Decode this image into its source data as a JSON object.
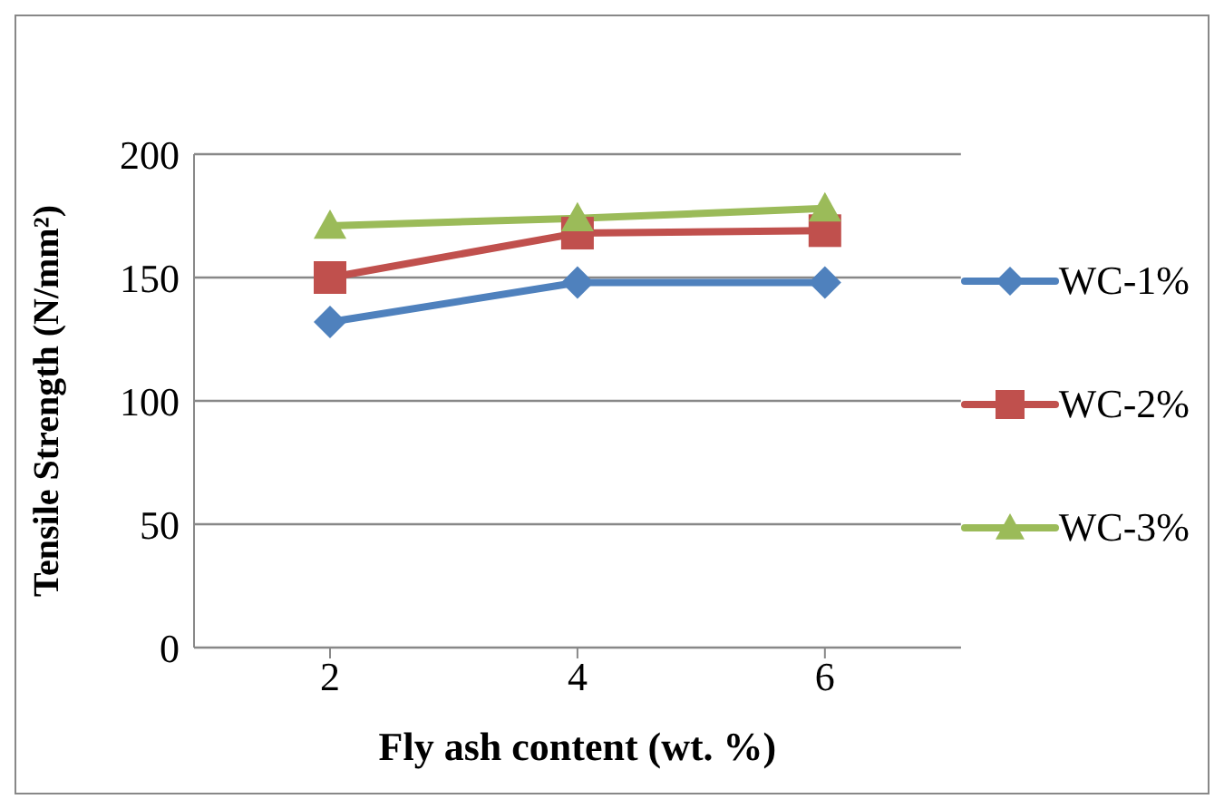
{
  "chart_data": {
    "type": "line",
    "xlabel": "Fly ash content (wt. %)",
    "ylabel": "Tensile Strength (N/mm²)",
    "categories": [
      "2",
      "4",
      "6"
    ],
    "series": [
      {
        "name": "WC-1%",
        "color": "#4f81bd",
        "marker": "diamond",
        "values": [
          132,
          148,
          148
        ]
      },
      {
        "name": "WC-2%",
        "color": "#c0504d",
        "marker": "square",
        "values": [
          150,
          168,
          169
        ]
      },
      {
        "name": "WC-3%",
        "color": "#9bbb59",
        "marker": "triangle",
        "values": [
          171,
          174,
          178
        ]
      }
    ],
    "ylim": [
      0,
      200
    ],
    "yticks": [
      0,
      50,
      100,
      150,
      200
    ],
    "grid": "y",
    "legend": "right"
  }
}
